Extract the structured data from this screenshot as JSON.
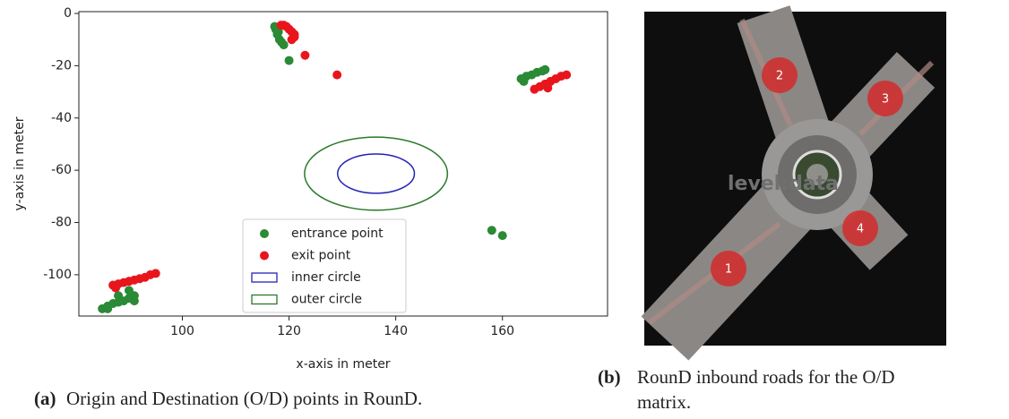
{
  "chart_data": {
    "type": "scatter",
    "xlabel": "x-axis in meter",
    "ylabel": "y-axis in meter",
    "xlim": [
      80.6,
      179.7
    ],
    "ylim": [
      -115.8,
      0.7
    ],
    "xticks": [
      100,
      120,
      140,
      160
    ],
    "yticks": [
      0,
      -20,
      -40,
      -60,
      -80,
      -100
    ],
    "legend": "lower center",
    "series": [
      {
        "name": "entrance point",
        "color": "#2a8a35",
        "x": [
          117.3,
          117.5,
          118,
          117.8,
          118.2,
          118.6,
          119,
          120,
          163.5,
          164.5,
          165.5,
          166.5,
          167.5,
          168,
          164,
          158,
          160,
          85,
          86,
          87,
          88,
          89,
          90,
          91,
          90,
          91,
          86,
          88
        ],
        "values": [
          -5,
          -6,
          -7,
          -8,
          -10,
          -11,
          -12,
          -18,
          -25,
          -24,
          -23.5,
          -22.5,
          -22,
          -21.5,
          -26,
          -83,
          -85,
          -113,
          -112,
          -111,
          -110.5,
          -110,
          -109,
          -108,
          -106,
          -110,
          -113,
          -108
        ]
      },
      {
        "name": "exit point",
        "color": "#e8161c",
        "x": [
          118.5,
          119,
          119.5,
          120,
          120.5,
          121,
          121,
          120.5,
          123,
          129,
          166,
          167,
          168,
          169,
          170,
          171,
          172,
          168.5,
          87,
          88,
          89,
          90,
          91,
          92,
          93,
          94,
          95,
          87.5
        ],
        "values": [
          -4.5,
          -4.5,
          -5,
          -6,
          -7,
          -8,
          -9,
          -10,
          -16,
          -23.5,
          -29,
          -28,
          -27,
          -26,
          -25,
          -24,
          -23.5,
          -28.5,
          -104,
          -103.5,
          -103,
          -102.5,
          -102,
          -101.5,
          -101,
          -100,
          -99.5,
          -105
        ]
      }
    ],
    "shapes": [
      {
        "name": "inner circle",
        "color": "#2323b8",
        "center": [
          136.3,
          -61.3
        ],
        "radii": [
          7.2,
          7.5
        ]
      },
      {
        "name": "outer circle",
        "color": "#2a7a2a",
        "center": [
          136.3,
          -61.3
        ],
        "radii": [
          13.4,
          14
        ]
      }
    ]
  },
  "image": {
    "watermark": "level:data",
    "markers": [
      "1",
      "2",
      "3",
      "4"
    ]
  },
  "captions": {
    "a": {
      "label": "(a)",
      "text": "Origin and Destination (O/D) points in RounD."
    },
    "b": {
      "label": "(b)",
      "lines": [
        "RounD inbound roads for the O/D",
        "matrix."
      ]
    }
  }
}
